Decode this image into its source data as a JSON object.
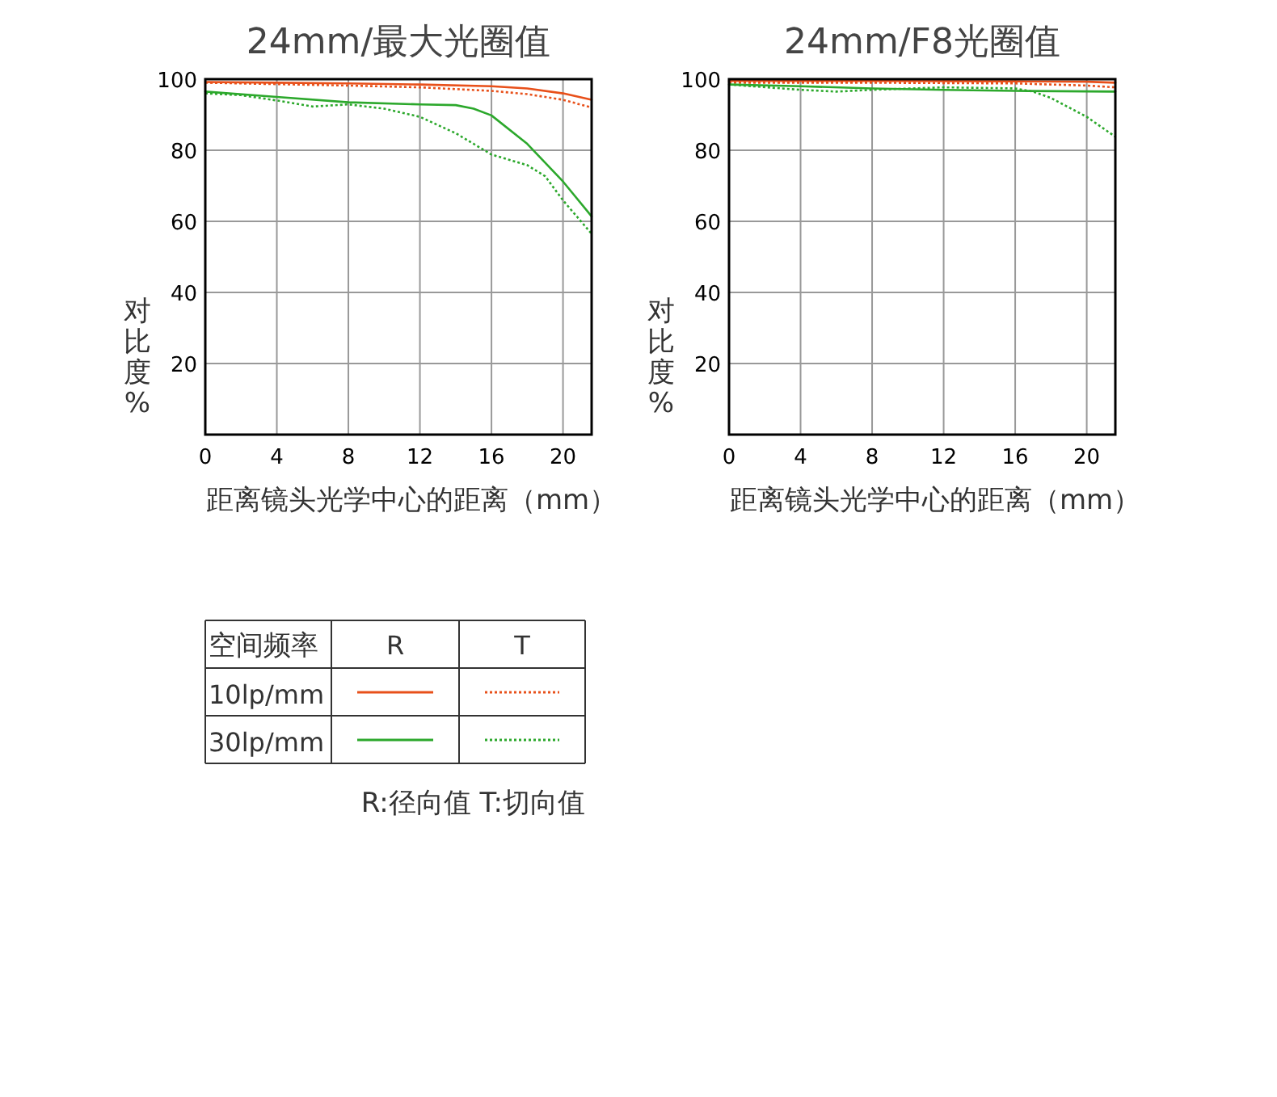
{
  "chart_data": [
    {
      "type": "line",
      "title": "24mm/最大光圈值",
      "xlabel": "距离镜头光学中心的距离（mm）",
      "ylabel": "对比度%",
      "xlim": [
        0,
        21.6
      ],
      "ylim": [
        0,
        100
      ],
      "xticks": [
        0,
        4,
        8,
        12,
        16,
        20
      ],
      "yticks": [
        {
          "value": 0,
          "label": null
        },
        20,
        40,
        60,
        80,
        100
      ],
      "grid": true,
      "legend": "bottom",
      "legend_title": "空间频率",
      "annotations": [
        "R",
        "T",
        "R:径向值 T:切向值"
      ],
      "series": [
        {
          "name": "10lp/mm",
          "color": "#e8501a",
          "line_style": "solid",
          "x": [
            0,
            4,
            8,
            12,
            16,
            18,
            20,
            21.6
          ],
          "values": [
            99.2,
            99,
            98.8,
            98.5,
            98,
            97.4,
            96,
            94.2
          ]
        },
        {
          "color": "#e8501a",
          "line_style": "dotted",
          "x": [
            0,
            4,
            8,
            12,
            16,
            18,
            20,
            21.6
          ],
          "values": [
            99,
            98.6,
            98.2,
            97.7,
            96.7,
            95.8,
            94.2,
            92
          ]
        },
        {
          "name": "30lp/mm",
          "color": "#2ca82c",
          "line_style": "solid",
          "x": [
            0,
            4,
            8,
            12,
            14,
            15,
            16,
            18,
            20,
            21.6
          ],
          "values": [
            96.5,
            95,
            93.5,
            92.9,
            92.7,
            91.7,
            89.8,
            81.8,
            71.2,
            61.4
          ]
        },
        {
          "color": "#2ca82c",
          "line_style": "dotted",
          "x": [
            0,
            2,
            4,
            6,
            8,
            10,
            12,
            14,
            16,
            18,
            19,
            20,
            21.6
          ],
          "values": [
            96,
            95.5,
            94,
            92.3,
            92.9,
            91.7,
            89.4,
            84.8,
            78.8,
            75.8,
            72.7,
            65.9,
            56.5
          ]
        }
      ]
    },
    {
      "type": "line",
      "title": "24mm/F8光圈值",
      "xlabel": "距离镜头光学中心的距离（mm）",
      "ylabel": "对比度%",
      "xlim": [
        0,
        21.6
      ],
      "ylim": [
        0,
        100
      ],
      "xticks": [
        0,
        4,
        8,
        12,
        16,
        20
      ],
      "yticks": [
        {
          "value": 0,
          "label": null
        },
        20,
        40,
        60,
        80,
        100
      ],
      "grid": true,
      "series": [
        {
          "color": "#e8501a",
          "line_style": "solid",
          "x": [
            0,
            8,
            16,
            20,
            21.6
          ],
          "values": [
            99.5,
            99.5,
            99.4,
            99.3,
            99
          ]
        },
        {
          "color": "#e8501a",
          "line_style": "dotted",
          "x": [
            0,
            8,
            16,
            18,
            20,
            21.6
          ],
          "values": [
            99,
            99,
            98.8,
            98.5,
            98.2,
            97.7
          ]
        },
        {
          "color": "#2ca82c",
          "line_style": "solid",
          "x": [
            0,
            4,
            8,
            12,
            16,
            21.6
          ],
          "values": [
            98.5,
            98,
            97.4,
            97,
            96.7,
            96.5
          ]
        },
        {
          "color": "#2ca82c",
          "line_style": "dotted",
          "x": [
            0,
            4,
            6,
            8,
            12,
            16,
            17,
            18,
            20,
            21.6
          ],
          "values": [
            98.5,
            97,
            96.5,
            97,
            97.7,
            97.4,
            96.5,
            94.7,
            89.4,
            83.8
          ]
        }
      ]
    }
  ]
}
